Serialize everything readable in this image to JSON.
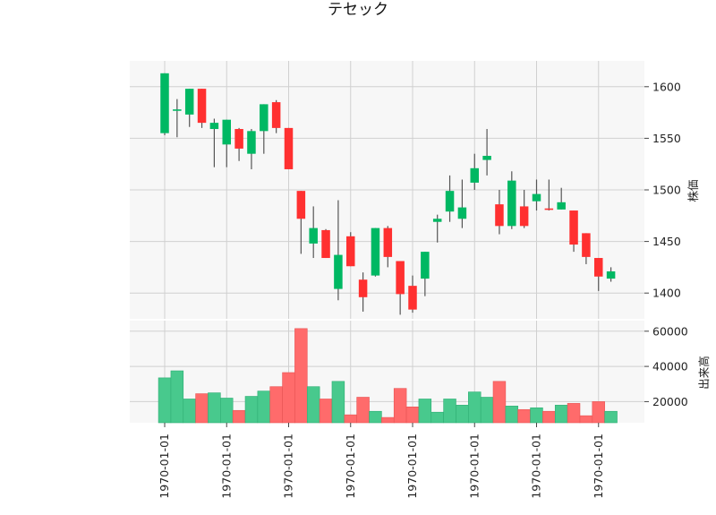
{
  "chart_data": {
    "type": "candlestick",
    "title": "テセック",
    "price_axis": {
      "label": "株価",
      "ylim": [
        1375,
        1625
      ],
      "ticks": [
        1400,
        1450,
        1500,
        1550,
        1600
      ],
      "tick_labels": [
        "1400",
        "1450",
        "1500",
        "1550",
        "1600"
      ]
    },
    "volume_axis": {
      "label": "出来高",
      "ylim": [
        8000,
        66000
      ],
      "ticks": [
        20000,
        40000,
        60000
      ],
      "tick_labels": [
        "20000",
        "40000",
        "60000"
      ]
    },
    "x_tick_labels": [
      "1970-01-01",
      "1970-01-01",
      "1970-01-01",
      "1970-01-01",
      "1970-01-01",
      "1970-01-01",
      "1970-01-01",
      "1970-01-01"
    ],
    "x_tick_positions": [
      0,
      5,
      10,
      15,
      20,
      25,
      30,
      35
    ],
    "grid": true,
    "up_color": "#00b863",
    "down_color": "#ff3030",
    "volume_up_color": "#48c98d",
    "volume_down_color": "#ff6b6b",
    "candles": [
      {
        "open": 1555,
        "high": 1613,
        "low": 1553,
        "close": 1613,
        "volume": 33500
      },
      {
        "open": 1578,
        "high": 1588,
        "low": 1551,
        "close": 1578,
        "volume": 37500
      },
      {
        "open": 1573,
        "high": 1598,
        "low": 1561,
        "close": 1598,
        "volume": 21500
      },
      {
        "open": 1598,
        "high": 1598,
        "low": 1560,
        "close": 1565,
        "volume": 24500
      },
      {
        "open": 1559,
        "high": 1569,
        "low": 1522,
        "close": 1565,
        "volume": 25000
      },
      {
        "open": 1544,
        "high": 1568,
        "low": 1522,
        "close": 1568,
        "volume": 22000
      },
      {
        "open": 1559,
        "high": 1560,
        "low": 1528,
        "close": 1540,
        "volume": 15000
      },
      {
        "open": 1535,
        "high": 1559,
        "low": 1520,
        "close": 1557,
        "volume": 23000
      },
      {
        "open": 1557,
        "high": 1583,
        "low": 1535,
        "close": 1583,
        "volume": 26000
      },
      {
        "open": 1585,
        "high": 1587,
        "low": 1555,
        "close": 1560,
        "volume": 28500
      },
      {
        "open": 1560,
        "high": 1560,
        "low": 1520,
        "close": 1520,
        "volume": 36500
      },
      {
        "open": 1499,
        "high": 1499,
        "low": 1438,
        "close": 1472,
        "volume": 61500
      },
      {
        "open": 1448,
        "high": 1484,
        "low": 1434,
        "close": 1463,
        "volume": 28500
      },
      {
        "open": 1461,
        "high": 1462,
        "low": 1434,
        "close": 1434,
        "volume": 21500
      },
      {
        "open": 1404,
        "high": 1490,
        "low": 1393,
        "close": 1437,
        "volume": 31500
      },
      {
        "open": 1455,
        "high": 1459,
        "low": 1426,
        "close": 1426,
        "volume": 12500
      },
      {
        "open": 1413,
        "high": 1420,
        "low": 1382,
        "close": 1396,
        "volume": 22500
      },
      {
        "open": 1417,
        "high": 1463,
        "low": 1416,
        "close": 1463,
        "volume": 14500
      },
      {
        "open": 1463,
        "high": 1465,
        "low": 1425,
        "close": 1435,
        "volume": 11000
      },
      {
        "open": 1431,
        "high": 1431,
        "low": 1379,
        "close": 1399,
        "volume": 27500
      },
      {
        "open": 1407,
        "high": 1417,
        "low": 1381,
        "close": 1384,
        "volume": 17000
      },
      {
        "open": 1414,
        "high": 1440,
        "low": 1397,
        "close": 1440,
        "volume": 21500
      },
      {
        "open": 1469,
        "high": 1476,
        "low": 1449,
        "close": 1472,
        "volume": 14000
      },
      {
        "open": 1479,
        "high": 1514,
        "low": 1469,
        "close": 1499,
        "volume": 21500
      },
      {
        "open": 1472,
        "high": 1510,
        "low": 1463,
        "close": 1483,
        "volume": 18000
      },
      {
        "open": 1507,
        "high": 1535,
        "low": 1500,
        "close": 1521,
        "volume": 25500
      },
      {
        "open": 1529,
        "high": 1559,
        "low": 1514,
        "close": 1533,
        "volume": 22500
      },
      {
        "open": 1486,
        "high": 1500,
        "low": 1457,
        "close": 1465,
        "volume": 31500
      },
      {
        "open": 1465,
        "high": 1518,
        "low": 1462,
        "close": 1509,
        "volume": 17500
      },
      {
        "open": 1484,
        "high": 1500,
        "low": 1463,
        "close": 1465,
        "volume": 15500
      },
      {
        "open": 1489,
        "high": 1510,
        "low": 1480,
        "close": 1496,
        "volume": 16500
      },
      {
        "open": 1482,
        "high": 1510,
        "low": 1480,
        "close": 1481,
        "volume": 14500
      },
      {
        "open": 1481,
        "high": 1502,
        "low": 1481,
        "close": 1488,
        "volume": 18000
      },
      {
        "open": 1480,
        "high": 1480,
        "low": 1440,
        "close": 1447,
        "volume": 19000
      },
      {
        "open": 1458,
        "high": 1458,
        "low": 1428,
        "close": 1435,
        "volume": 12000
      },
      {
        "open": 1434,
        "high": 1434,
        "low": 1402,
        "close": 1416,
        "volume": 20000
      },
      {
        "open": 1414,
        "high": 1425,
        "low": 1411,
        "close": 1421,
        "volume": 14500
      }
    ]
  }
}
